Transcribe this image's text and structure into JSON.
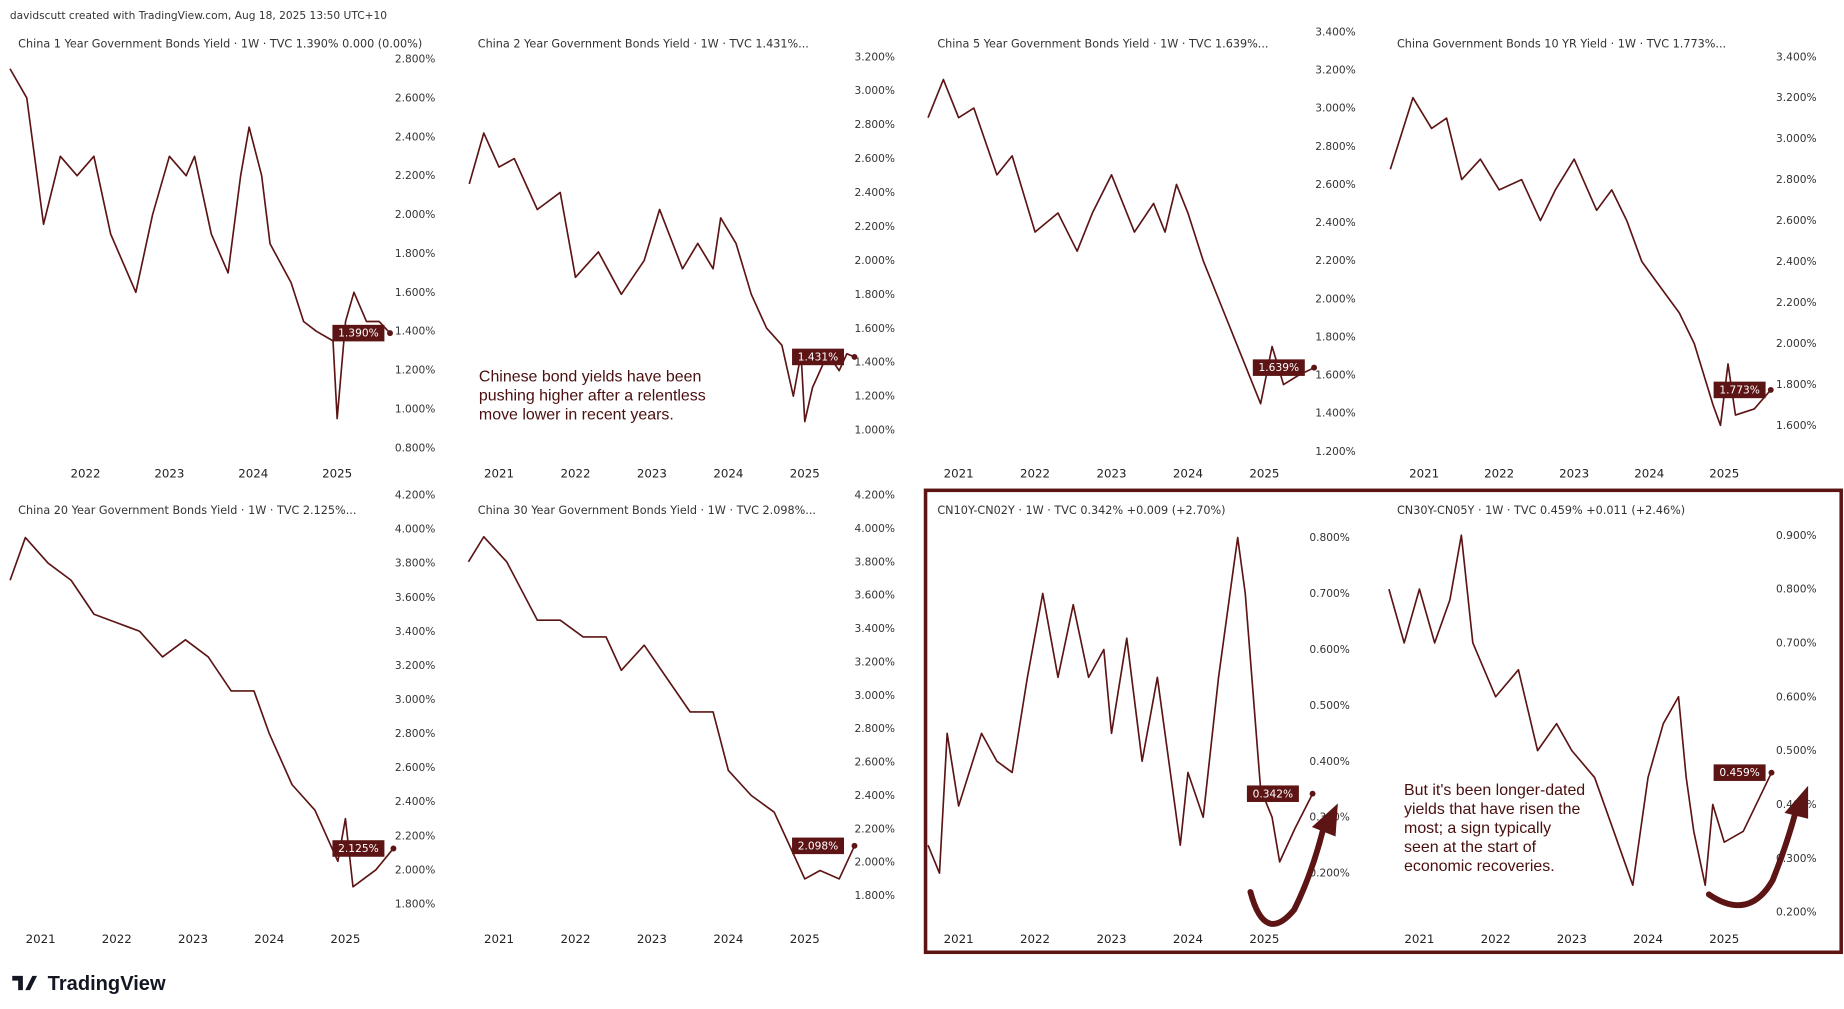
{
  "header": "davidscutt created with TradingView.com, Aug 18, 2025 13:50 UTC+10",
  "logo": "TradingView",
  "colors": {
    "line": "#5c1414",
    "badge": "#5c1414",
    "highlight_box": "#5c1414"
  },
  "annotations": [
    [
      "Chinese bond yields have been",
      "pushing higher after a relentless",
      "move lower in recent years."
    ],
    [
      "But it's been longer-dated",
      "yields that have risen the",
      "most; a sign typically",
      "seen at the start of",
      "economic recoveries."
    ]
  ],
  "chart_data": [
    {
      "type": "line",
      "title": "China 1 Year Government Bonds Yield · 1W · TVC  1.390%  0.000 (0.00%)",
      "last_label": "1.390%",
      "xticks": [
        "2022",
        "2023",
        "2024",
        "2025"
      ],
      "yticks": [
        "2.800%",
        "2.600%",
        "2.400%",
        "2.200%",
        "2.000%",
        "1.800%",
        "1.600%",
        "1.400%",
        "1.200%",
        "1.000%",
        "0.800%"
      ],
      "x": [
        2021.1,
        2021.3,
        2021.5,
        2021.7,
        2021.9,
        2022.1,
        2022.3,
        2022.6,
        2022.8,
        2023.0,
        2023.2,
        2023.3,
        2023.5,
        2023.7,
        2023.85,
        2023.95,
        2024.1,
        2024.2,
        2024.45,
        2024.6,
        2024.75,
        2024.95,
        2025.0,
        2025.1,
        2025.2,
        2025.35,
        2025.5,
        2025.63
      ],
      "y": [
        2.75,
        2.6,
        1.95,
        2.3,
        2.2,
        2.3,
        1.9,
        1.6,
        2.0,
        2.3,
        2.2,
        2.3,
        1.9,
        1.7,
        2.2,
        2.45,
        2.2,
        1.85,
        1.65,
        1.45,
        1.4,
        1.35,
        0.95,
        1.45,
        1.6,
        1.45,
        1.45,
        1.39
      ]
    },
    {
      "type": "line",
      "title": "China 2 Year Government Bonds Yield · 1W · TVC  1.431%...",
      "last_label": "1.431%",
      "xticks": [
        "2021",
        "2022",
        "2023",
        "2024",
        "2025"
      ],
      "yticks": [
        "3.200%",
        "3.000%",
        "2.800%",
        "2.600%",
        "2.400%",
        "2.200%",
        "2.000%",
        "1.800%",
        "1.600%",
        "1.400%",
        "1.200%",
        "1.000%"
      ],
      "x": [
        2020.61,
        2020.8,
        2021.0,
        2021.2,
        2021.5,
        2021.8,
        2022.0,
        2022.3,
        2022.6,
        2022.9,
        2023.1,
        2023.4,
        2023.6,
        2023.8,
        2023.9,
        2024.1,
        2024.3,
        2024.5,
        2024.7,
        2024.85,
        2024.95,
        2025.0,
        2025.1,
        2025.3,
        2025.45,
        2025.55,
        2025.65
      ],
      "y": [
        2.45,
        2.75,
        2.55,
        2.6,
        2.3,
        2.4,
        1.9,
        2.05,
        1.8,
        2.0,
        2.3,
        1.95,
        2.1,
        1.95,
        2.25,
        2.1,
        1.8,
        1.6,
        1.5,
        1.2,
        1.45,
        1.05,
        1.25,
        1.45,
        1.35,
        1.45,
        1.431
      ]
    },
    {
      "type": "line",
      "title": "China 5 Year Government Bonds Yield · 1W · TVC  1.639%...",
      "last_label": "1.639%",
      "xticks": [
        "2021",
        "2022",
        "2023",
        "2024",
        "2025"
      ],
      "yticks": [
        "3.400%",
        "3.200%",
        "3.000%",
        "2.800%",
        "2.600%",
        "2.400%",
        "2.200%",
        "2.000%",
        "1.800%",
        "1.600%",
        "1.400%",
        "1.200%"
      ],
      "x": [
        2020.6,
        2020.8,
        2021.0,
        2021.2,
        2021.5,
        2021.7,
        2022.0,
        2022.3,
        2022.55,
        2022.75,
        2023.0,
        2023.3,
        2023.55,
        2023.7,
        2023.85,
        2024.0,
        2024.2,
        2024.45,
        2024.6,
        2024.85,
        2024.95,
        2025.1,
        2025.25,
        2025.45,
        2025.65
      ],
      "y": [
        2.95,
        3.15,
        2.95,
        3.0,
        2.65,
        2.75,
        2.35,
        2.45,
        2.25,
        2.45,
        2.65,
        2.35,
        2.5,
        2.35,
        2.6,
        2.45,
        2.2,
        1.95,
        1.8,
        1.55,
        1.45,
        1.75,
        1.55,
        1.6,
        1.639
      ]
    },
    {
      "type": "line",
      "title": "China Government Bonds 10 YR Yield · 1W · TVC  1.773%...",
      "last_label": "1.773%",
      "xticks": [
        "2021",
        "2022",
        "2023",
        "2024",
        "2025"
      ],
      "yticks": [
        "3.400%",
        "3.200%",
        "3.000%",
        "2.800%",
        "2.600%",
        "2.400%",
        "2.200%",
        "2.000%",
        "1.800%",
        "1.600%"
      ],
      "x": [
        2020.55,
        2020.85,
        2021.1,
        2021.3,
        2021.5,
        2021.75,
        2022.0,
        2022.3,
        2022.55,
        2022.75,
        2023.0,
        2023.3,
        2023.5,
        2023.7,
        2023.9,
        2024.1,
        2024.4,
        2024.6,
        2024.85,
        2024.95,
        2025.05,
        2025.15,
        2025.4,
        2025.62
      ],
      "y": [
        2.85,
        3.2,
        3.05,
        3.1,
        2.8,
        2.9,
        2.75,
        2.8,
        2.6,
        2.75,
        2.9,
        2.65,
        2.75,
        2.6,
        2.4,
        2.3,
        2.15,
        2.0,
        1.7,
        1.6,
        1.9,
        1.65,
        1.68,
        1.773
      ]
    },
    {
      "type": "line",
      "title": "China 20 Year Government Bonds Yield · 1W · TVC  2.125%...",
      "last_label": "2.125%",
      "xticks": [
        "2021",
        "2022",
        "2023",
        "2024",
        "2025"
      ],
      "yticks": [
        "4.200%",
        "4.000%",
        "3.800%",
        "3.600%",
        "3.400%",
        "3.200%",
        "3.000%",
        "2.800%",
        "2.600%",
        "2.400%",
        "2.200%",
        "2.000%",
        "1.800%"
      ],
      "x": [
        2020.6,
        2020.8,
        2021.1,
        2021.4,
        2021.7,
        2022.0,
        2022.3,
        2022.6,
        2022.9,
        2023.2,
        2023.5,
        2023.8,
        2024.0,
        2024.3,
        2024.6,
        2024.9,
        2025.0,
        2025.1,
        2025.4,
        2025.63
      ],
      "y": [
        3.7,
        3.95,
        3.8,
        3.7,
        3.5,
        3.45,
        3.4,
        3.25,
        3.35,
        3.25,
        3.05,
        3.05,
        2.8,
        2.5,
        2.35,
        2.05,
        2.3,
        1.9,
        2.0,
        2.125
      ]
    },
    {
      "type": "line",
      "title": "China 30 Year Government Bonds Yield · 1W · TVC  2.098%...",
      "last_label": "2.098%",
      "xticks": [
        "2021",
        "2022",
        "2023",
        "2024",
        "2025"
      ],
      "yticks": [
        "4.200%",
        "4.000%",
        "3.800%",
        "3.600%",
        "3.400%",
        "3.200%",
        "3.000%",
        "2.800%",
        "2.600%",
        "2.400%",
        "2.200%",
        "2.000%",
        "1.800%"
      ],
      "x": [
        2020.6,
        2020.8,
        2021.1,
        2021.5,
        2021.8,
        2022.1,
        2022.4,
        2022.6,
        2022.9,
        2023.2,
        2023.5,
        2023.8,
        2024.0,
        2024.3,
        2024.6,
        2024.8,
        2025.0,
        2025.2,
        2025.45,
        2025.65
      ],
      "y": [
        3.8,
        3.95,
        3.8,
        3.45,
        3.45,
        3.35,
        3.35,
        3.15,
        3.3,
        3.1,
        2.9,
        2.9,
        2.55,
        2.4,
        2.3,
        2.1,
        1.9,
        1.95,
        1.9,
        2.098
      ]
    },
    {
      "type": "line",
      "title": "CN10Y-CN02Y · 1W · TVC  0.342%  +0.009 (+2.70%)",
      "last_label": "0.342%",
      "xticks": [
        "2021",
        "2022",
        "2023",
        "2024",
        "2025"
      ],
      "yticks": [
        "0.800%",
        "0.700%",
        "0.600%",
        "0.500%",
        "0.400%",
        "0.300%",
        "0.200%"
      ],
      "x": [
        2020.6,
        2020.75,
        2020.85,
        2021.0,
        2021.3,
        2021.5,
        2021.7,
        2021.9,
        2022.1,
        2022.3,
        2022.5,
        2022.7,
        2022.9,
        2023.0,
        2023.2,
        2023.4,
        2023.6,
        2023.9,
        2024.0,
        2024.2,
        2024.4,
        2024.6,
        2024.65,
        2024.75,
        2024.95,
        2025.1,
        2025.2,
        2025.4,
        2025.63
      ],
      "y": [
        0.25,
        0.2,
        0.45,
        0.32,
        0.45,
        0.4,
        0.38,
        0.55,
        0.7,
        0.55,
        0.68,
        0.55,
        0.6,
        0.45,
        0.62,
        0.4,
        0.55,
        0.25,
        0.38,
        0.3,
        0.55,
        0.75,
        0.8,
        0.7,
        0.35,
        0.3,
        0.22,
        0.28,
        0.342
      ]
    },
    {
      "type": "line",
      "title": "CN30Y-CN05Y · 1W · TVC  0.459%  +0.011 (+2.46%)",
      "last_label": "0.459%",
      "xticks": [
        "2021",
        "2022",
        "2023",
        "2024",
        "2025"
      ],
      "yticks": [
        "0.900%",
        "0.800%",
        "0.700%",
        "0.600%",
        "0.500%",
        "0.400%",
        "0.300%",
        "0.200%"
      ],
      "x": [
        2020.6,
        2020.8,
        2021.0,
        2021.2,
        2021.4,
        2021.55,
        2021.7,
        2022.0,
        2022.3,
        2022.55,
        2022.8,
        2023.0,
        2023.3,
        2023.55,
        2023.8,
        2024.0,
        2024.2,
        2024.4,
        2024.5,
        2024.6,
        2024.75,
        2024.85,
        2025.0,
        2025.25,
        2025.62
      ],
      "y": [
        0.8,
        0.7,
        0.8,
        0.7,
        0.78,
        0.9,
        0.7,
        0.6,
        0.65,
        0.5,
        0.55,
        0.5,
        0.45,
        0.35,
        0.25,
        0.45,
        0.55,
        0.6,
        0.45,
        0.35,
        0.25,
        0.4,
        0.33,
        0.35,
        0.459
      ]
    }
  ]
}
